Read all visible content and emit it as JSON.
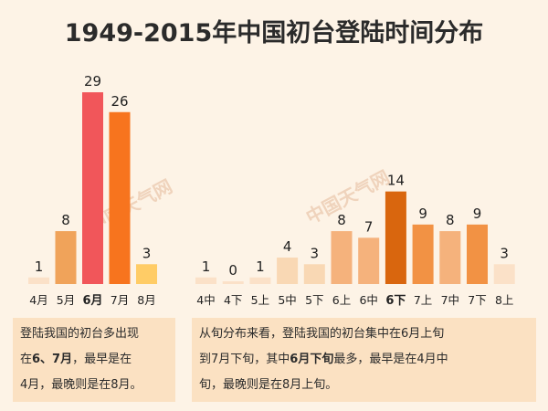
{
  "title": "1949-2015年中国初台登陆时间分布",
  "watermark": "中国天气网",
  "chart_data": [
    {
      "type": "bar",
      "categories": [
        "4月",
        "5月",
        "6月",
        "7月",
        "8月"
      ],
      "highlight_category": "6月",
      "values": [
        1,
        8,
        29,
        26,
        3
      ],
      "colors": [
        "#fbe1c8",
        "#f0a35a",
        "#f1565a",
        "#f7741e",
        "#ffcc66"
      ]
    },
    {
      "type": "bar",
      "categories": [
        "4中",
        "4下",
        "5上",
        "5中",
        "5下",
        "6上",
        "6中",
        "6下",
        "7上",
        "7中",
        "7下",
        "8上"
      ],
      "highlight_category": "6下",
      "values": [
        1,
        0,
        1,
        4,
        3,
        8,
        7,
        14,
        9,
        8,
        9,
        3
      ],
      "colors": [
        "#fbe1c8",
        "#fbe1c8",
        "#fbe1c8",
        "#f9d8b4",
        "#f9d8b4",
        "#f5b27c",
        "#f5b27c",
        "#d9660e",
        "#f29244",
        "#f5b27c",
        "#f29244",
        "#fbe1c8"
      ]
    }
  ],
  "notes": {
    "left": {
      "line1": "登陆我国的初台多出现",
      "line2_pre": "在",
      "line2_bold": "6、7月",
      "line2_post": "，最早是在",
      "line3": "4月，最晚则是在8月。"
    },
    "right": {
      "line1": "从旬分布来看，登陆我国的初台集中在6月上旬",
      "line2_pre": "到7月下旬，其中",
      "line2_bold": "6月下旬",
      "line2_post": "最多，最早是在4月中",
      "line3": "旬，最晚则是在8月上旬。"
    }
  }
}
